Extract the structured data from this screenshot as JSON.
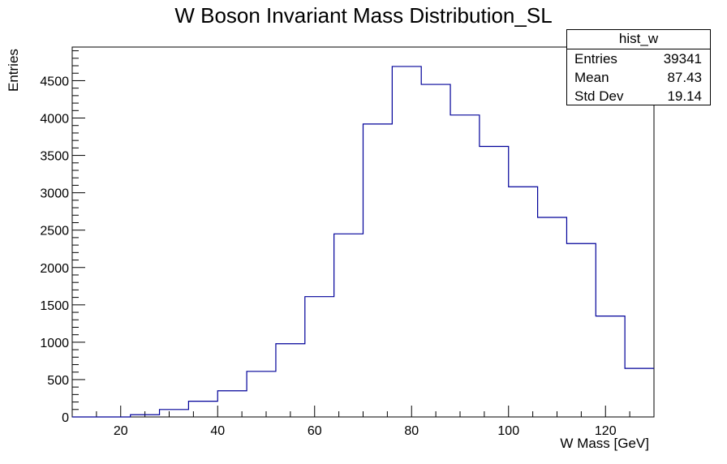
{
  "chart_data": {
    "type": "bar",
    "title": "W Boson Invariant Mass Distribution_SL",
    "xlabel": "W Mass [GeV]",
    "ylabel": "Entries",
    "xlim": [
      10,
      130
    ],
    "ylim": [
      0,
      4950
    ],
    "x_ticks": [
      20,
      40,
      60,
      80,
      100,
      120
    ],
    "y_ticks": [
      0,
      500,
      1000,
      1500,
      2000,
      2500,
      3000,
      3500,
      4000,
      4500
    ],
    "bin_edges": [
      10,
      16,
      22,
      28,
      34,
      40,
      46,
      52,
      58,
      64,
      70,
      76,
      82,
      88,
      94,
      100,
      106,
      112,
      118,
      124,
      130
    ],
    "values": [
      0,
      0,
      30,
      100,
      210,
      350,
      610,
      980,
      1610,
      2450,
      3920,
      4690,
      4450,
      4040,
      3620,
      3080,
      2670,
      2320,
      1350,
      650
    ],
    "color": "#000099",
    "stats": {
      "name": "hist_w",
      "rows": [
        {
          "label": "Entries",
          "value": "39341"
        },
        {
          "label": "Mean",
          "value": "87.43"
        },
        {
          "label": "Std Dev",
          "value": "19.14"
        }
      ]
    }
  }
}
